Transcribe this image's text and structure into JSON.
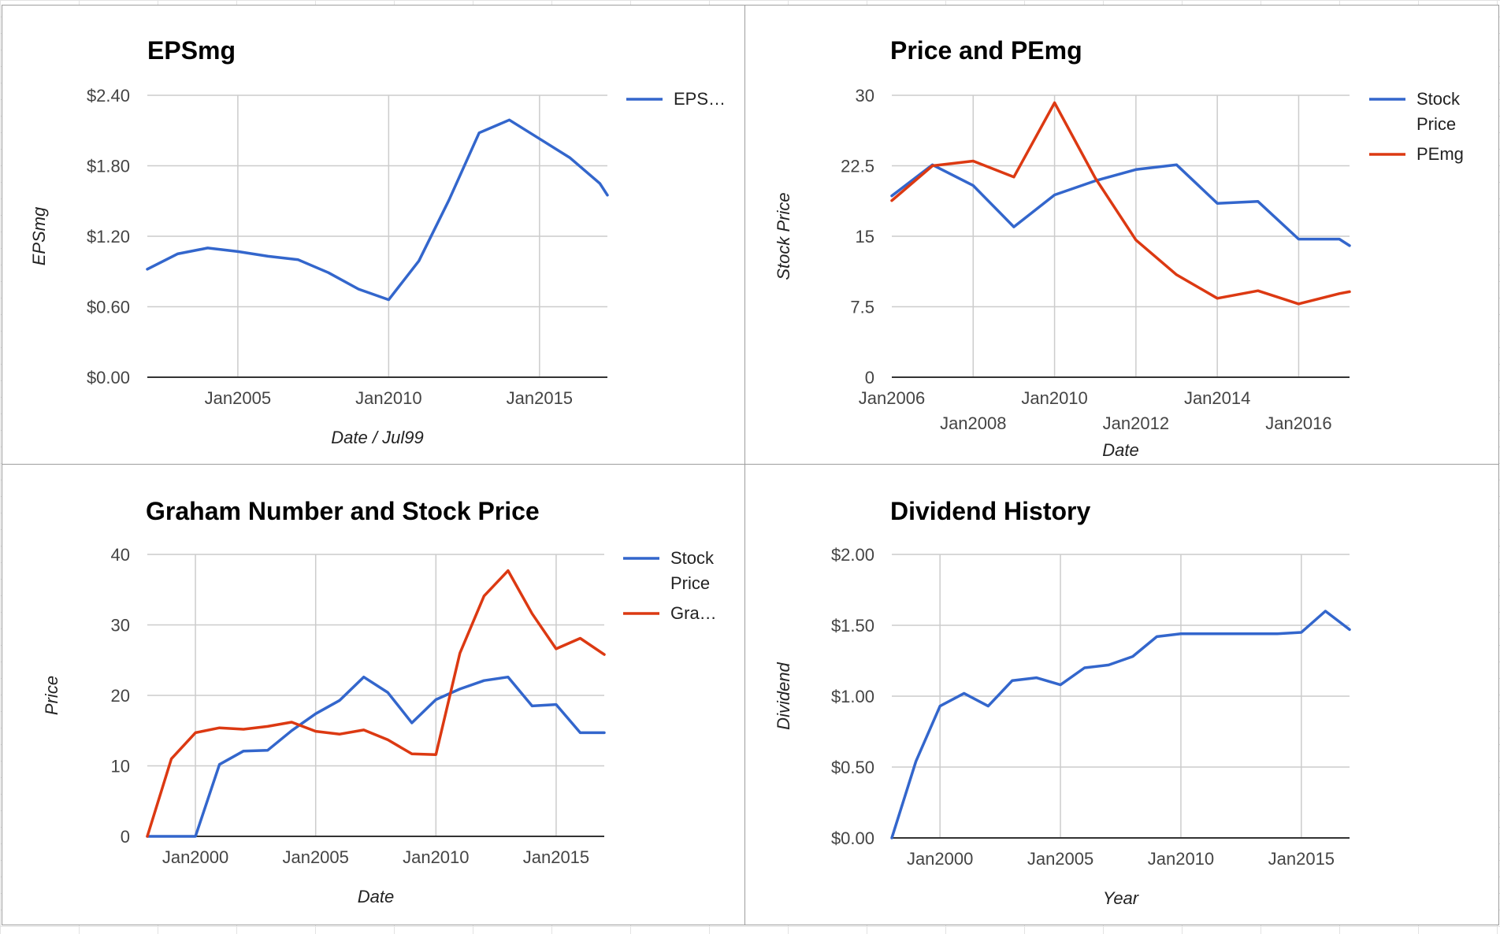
{
  "chart_data": [
    {
      "id": "eps",
      "type": "line",
      "title": "EPSmg",
      "xlabel": "Date / Jul99",
      "ylabel": "EPSmg",
      "xlim": [
        2002.0,
        2017.25
      ],
      "ylim": [
        0,
        2.4
      ],
      "y_ticks": [
        "$0.00",
        "$0.60",
        "$1.20",
        "$1.80",
        "$2.40"
      ],
      "y_tick_values": [
        0,
        0.6,
        1.2,
        1.8,
        2.4
      ],
      "x_ticks": [
        "Jan2005",
        "Jan2010",
        "Jan2015"
      ],
      "x_tick_values": [
        2005,
        2010,
        2015
      ],
      "legend": "right",
      "grid": true,
      "series": [
        {
          "name": "EPS…",
          "color": "#3366cc",
          "x": [
            2002.0,
            2003.0,
            2004.0,
            2005.0,
            2006.0,
            2007.0,
            2008.0,
            2009.0,
            2010.0,
            2011.0,
            2012.0,
            2013.0,
            2014.0,
            2015.0,
            2016.0,
            2017.0,
            2017.25
          ],
          "values": [
            0.92,
            1.05,
            1.1,
            1.07,
            1.03,
            1.0,
            0.89,
            0.75,
            0.66,
            0.99,
            1.51,
            2.08,
            2.19,
            2.03,
            1.87,
            1.65,
            1.55
          ]
        }
      ]
    },
    {
      "id": "price_pe",
      "type": "line",
      "title": "Price and PEmg",
      "xlabel": "Date",
      "ylabel": "Stock Price",
      "xlim": [
        2006.0,
        2017.25
      ],
      "ylim": [
        0,
        30
      ],
      "y_ticks": [
        "0",
        "7.5",
        "15",
        "22.5",
        "30"
      ],
      "y_tick_values": [
        0,
        7.5,
        15,
        22.5,
        30
      ],
      "x_ticks": [
        "Jan2006",
        "Jan2008",
        "Jan2010",
        "Jan2012",
        "Jan2014",
        "Jan2016"
      ],
      "x_tick_values": [
        2006,
        2008,
        2010,
        2012,
        2014,
        2016
      ],
      "legend": "right",
      "grid": true,
      "series": [
        {
          "name": "Stock Price",
          "name_lines": [
            "Stock",
            "Price"
          ],
          "color": "#3366cc",
          "x": [
            2006.0,
            2007.0,
            2008.0,
            2009.0,
            2010.0,
            2011.0,
            2012.0,
            2013.0,
            2014.0,
            2015.0,
            2016.0,
            2017.0,
            2017.25
          ],
          "values": [
            19.3,
            22.6,
            20.4,
            16.0,
            19.4,
            20.9,
            22.1,
            22.6,
            18.5,
            18.7,
            14.7,
            14.7,
            14.0
          ]
        },
        {
          "name": "PEmg",
          "name_lines": [
            "PEmg"
          ],
          "color": "#dc3912",
          "x": [
            2006.0,
            2007.0,
            2008.0,
            2009.0,
            2010.0,
            2011.0,
            2012.0,
            2013.0,
            2014.0,
            2015.0,
            2016.0,
            2017.0,
            2017.25
          ],
          "values": [
            18.8,
            22.5,
            23.0,
            21.3,
            29.2,
            21.2,
            14.6,
            10.9,
            8.4,
            9.2,
            7.8,
            8.9,
            9.1
          ]
        }
      ]
    },
    {
      "id": "graham",
      "type": "line",
      "title": "Graham Number and Stock Price",
      "xlabel": "Date",
      "ylabel": "Price",
      "xlim": [
        1998.0,
        2017.0
      ],
      "ylim": [
        0,
        40
      ],
      "y_ticks": [
        "0",
        "10",
        "20",
        "30",
        "40"
      ],
      "y_tick_values": [
        0,
        10,
        20,
        30,
        40
      ],
      "x_ticks": [
        "Jan2000",
        "Jan2005",
        "Jan2010",
        "Jan2015"
      ],
      "x_tick_values": [
        2000,
        2005,
        2010,
        2015
      ],
      "legend": "right",
      "grid": true,
      "series": [
        {
          "name": "Stock Price",
          "name_lines": [
            "Stock",
            "Price"
          ],
          "color": "#3366cc",
          "x": [
            1998,
            1999,
            2000,
            2001,
            2002,
            2003,
            2004,
            2005,
            2006,
            2007,
            2008,
            2009,
            2010,
            2011,
            2012,
            2013,
            2014,
            2015,
            2016,
            2017
          ],
          "values": [
            0,
            0,
            0,
            10.2,
            12.1,
            12.2,
            15.0,
            17.4,
            19.3,
            22.6,
            20.4,
            16.1,
            19.4,
            20.9,
            22.1,
            22.6,
            18.5,
            18.7,
            14.7,
            14.7
          ]
        },
        {
          "name": "Gra…",
          "name_lines": [
            "Gra…"
          ],
          "color": "#dc3912",
          "x": [
            1998,
            1999,
            2000,
            2001,
            2002,
            2003,
            2004,
            2005,
            2006,
            2007,
            2008,
            2009,
            2010,
            2011,
            2012,
            2013,
            2014,
            2015,
            2016,
            2017
          ],
          "values": [
            0,
            11.0,
            14.7,
            15.4,
            15.2,
            15.6,
            16.2,
            14.9,
            14.5,
            15.1,
            13.7,
            11.7,
            11.6,
            26.0,
            34.1,
            37.7,
            31.6,
            26.6,
            28.1,
            25.8
          ]
        }
      ]
    },
    {
      "id": "dividend",
      "type": "line",
      "title": "Dividend History",
      "xlabel": "Year",
      "ylabel": "Dividend",
      "xlim": [
        1998.0,
        2017.0
      ],
      "ylim": [
        0,
        2.0
      ],
      "y_ticks": [
        "$0.00",
        "$0.50",
        "$1.00",
        "$1.50",
        "$2.00"
      ],
      "y_tick_values": [
        0,
        0.5,
        1.0,
        1.5,
        2.0
      ],
      "x_ticks": [
        "Jan2000",
        "Jan2005",
        "Jan2010",
        "Jan2015"
      ],
      "x_tick_values": [
        2000,
        2005,
        2010,
        2015
      ],
      "legend": "none",
      "grid": true,
      "series": [
        {
          "name": "",
          "color": "#3366cc",
          "x": [
            1998,
            1999,
            2000,
            2001,
            2002,
            2003,
            2004,
            2005,
            2006,
            2007,
            2008,
            2009,
            2010,
            2011,
            2012,
            2013,
            2014,
            2015,
            2016,
            2017
          ],
          "values": [
            0,
            0.54,
            0.93,
            1.02,
            0.93,
            1.11,
            1.13,
            1.08,
            1.2,
            1.22,
            1.28,
            1.42,
            1.44,
            1.44,
            1.44,
            1.44,
            1.44,
            1.45,
            1.6,
            1.47
          ]
        }
      ]
    }
  ]
}
